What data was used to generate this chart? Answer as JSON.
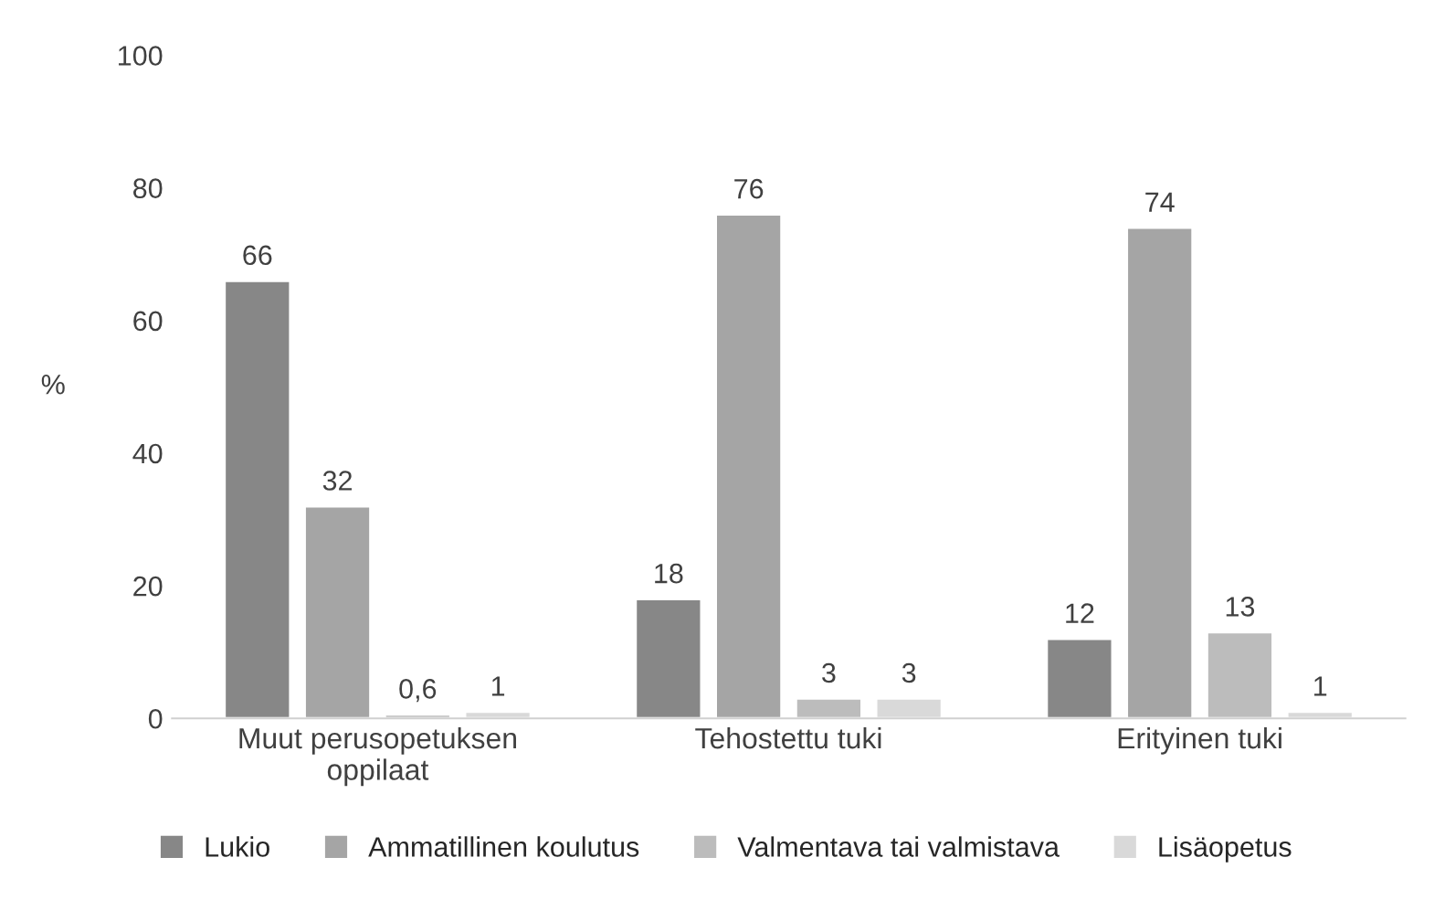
{
  "chart_data": {
    "type": "bar",
    "ylabel": "%",
    "categories": [
      "Muut perusopetuksen\noppilaat",
      "Tehostettu tuki",
      "Erityinen tuki"
    ],
    "series": [
      {
        "name": "Lukio",
        "color": "#878787",
        "values": [
          66,
          18,
          12
        ],
        "value_labels": [
          "66",
          "18",
          "12"
        ]
      },
      {
        "name": "Ammatillinen koulutus",
        "color": "#a5a5a5",
        "values": [
          32,
          76,
          74
        ],
        "value_labels": [
          "32",
          "76",
          "74"
        ]
      },
      {
        "name": "Valmentava tai valmistava",
        "color": "#bcbcbc",
        "values": [
          0.6,
          3,
          13
        ],
        "value_labels": [
          "0,6",
          "3",
          "13"
        ]
      },
      {
        "name": "Lisäopetus",
        "color": "#d9d9d9",
        "values": [
          1,
          3,
          1
        ],
        "value_labels": [
          "1",
          "3",
          "1"
        ]
      }
    ],
    "ylim": [
      0,
      100
    ],
    "yticks": [
      0,
      20,
      40,
      60,
      80,
      100
    ],
    "grid": false,
    "legend": "bottom"
  }
}
